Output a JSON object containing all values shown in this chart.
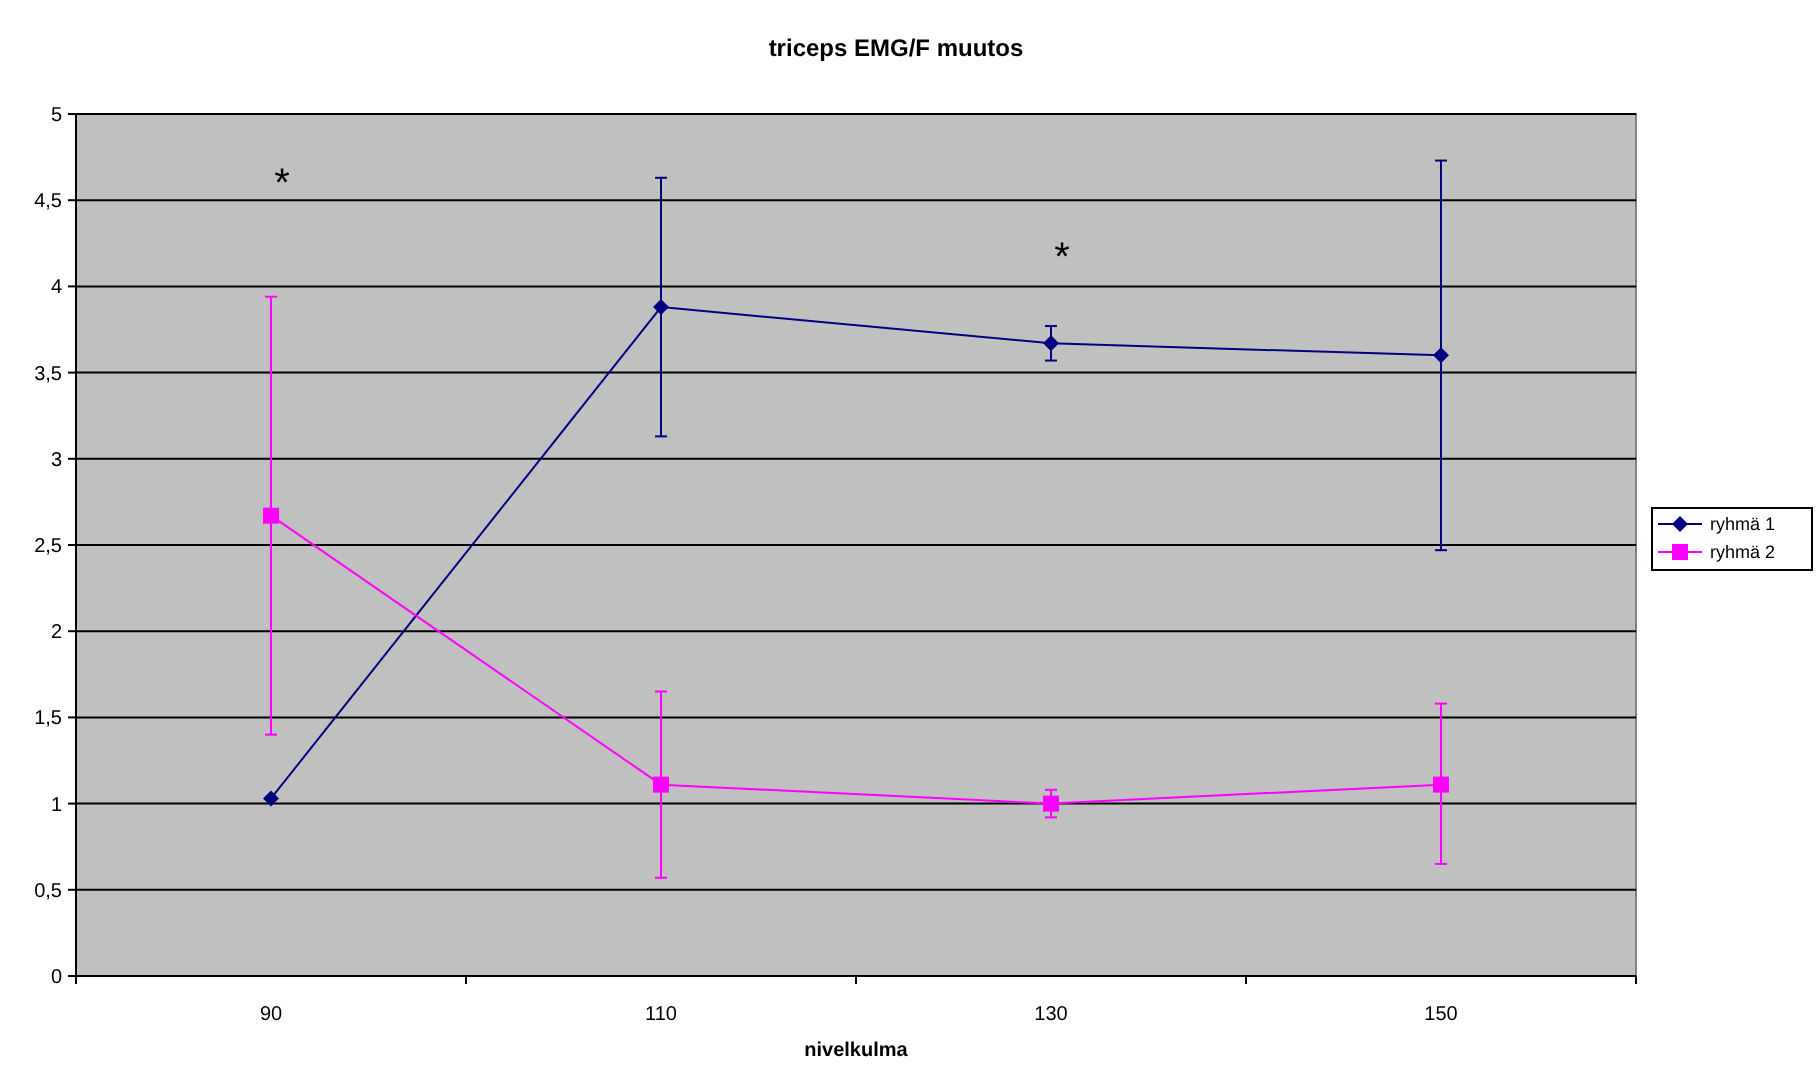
{
  "chart_data": {
    "type": "line",
    "title": "triceps EMG/F muutos",
    "xlabel": "nivelkulma",
    "categories": [
      "90",
      "110",
      "130",
      "150"
    ],
    "series": [
      {
        "name": "ryhmä 1",
        "color": "#000080",
        "marker": "diamond",
        "values": [
          1.03,
          3.88,
          3.67,
          3.6
        ],
        "errors": [
          null,
          [
            3.13,
            4.63
          ],
          [
            3.57,
            3.77
          ],
          [
            2.47,
            4.73
          ]
        ]
      },
      {
        "name": "ryhmä 2",
        "color": "#ff00ff",
        "marker": "square",
        "values": [
          2.67,
          1.11,
          1.0,
          1.11
        ],
        "errors": [
          [
            1.4,
            3.94
          ],
          [
            0.57,
            1.65
          ],
          [
            0.92,
            1.08
          ],
          [
            0.65,
            1.58
          ]
        ]
      }
    ],
    "ylim": [
      0,
      5
    ],
    "yticks": [
      0,
      {
        "value": 0.5,
        "label": "0,5"
      },
      1,
      {
        "value": 1.5,
        "label": "1,5"
      },
      2,
      {
        "value": 2.5,
        "label": "2,5"
      },
      3,
      {
        "value": 3.5,
        "label": "3,5"
      },
      4,
      {
        "value": 4.5,
        "label": "4,5"
      },
      5
    ],
    "grid": "y",
    "legend": "right",
    "annotations": [
      "*",
      "*"
    ]
  }
}
